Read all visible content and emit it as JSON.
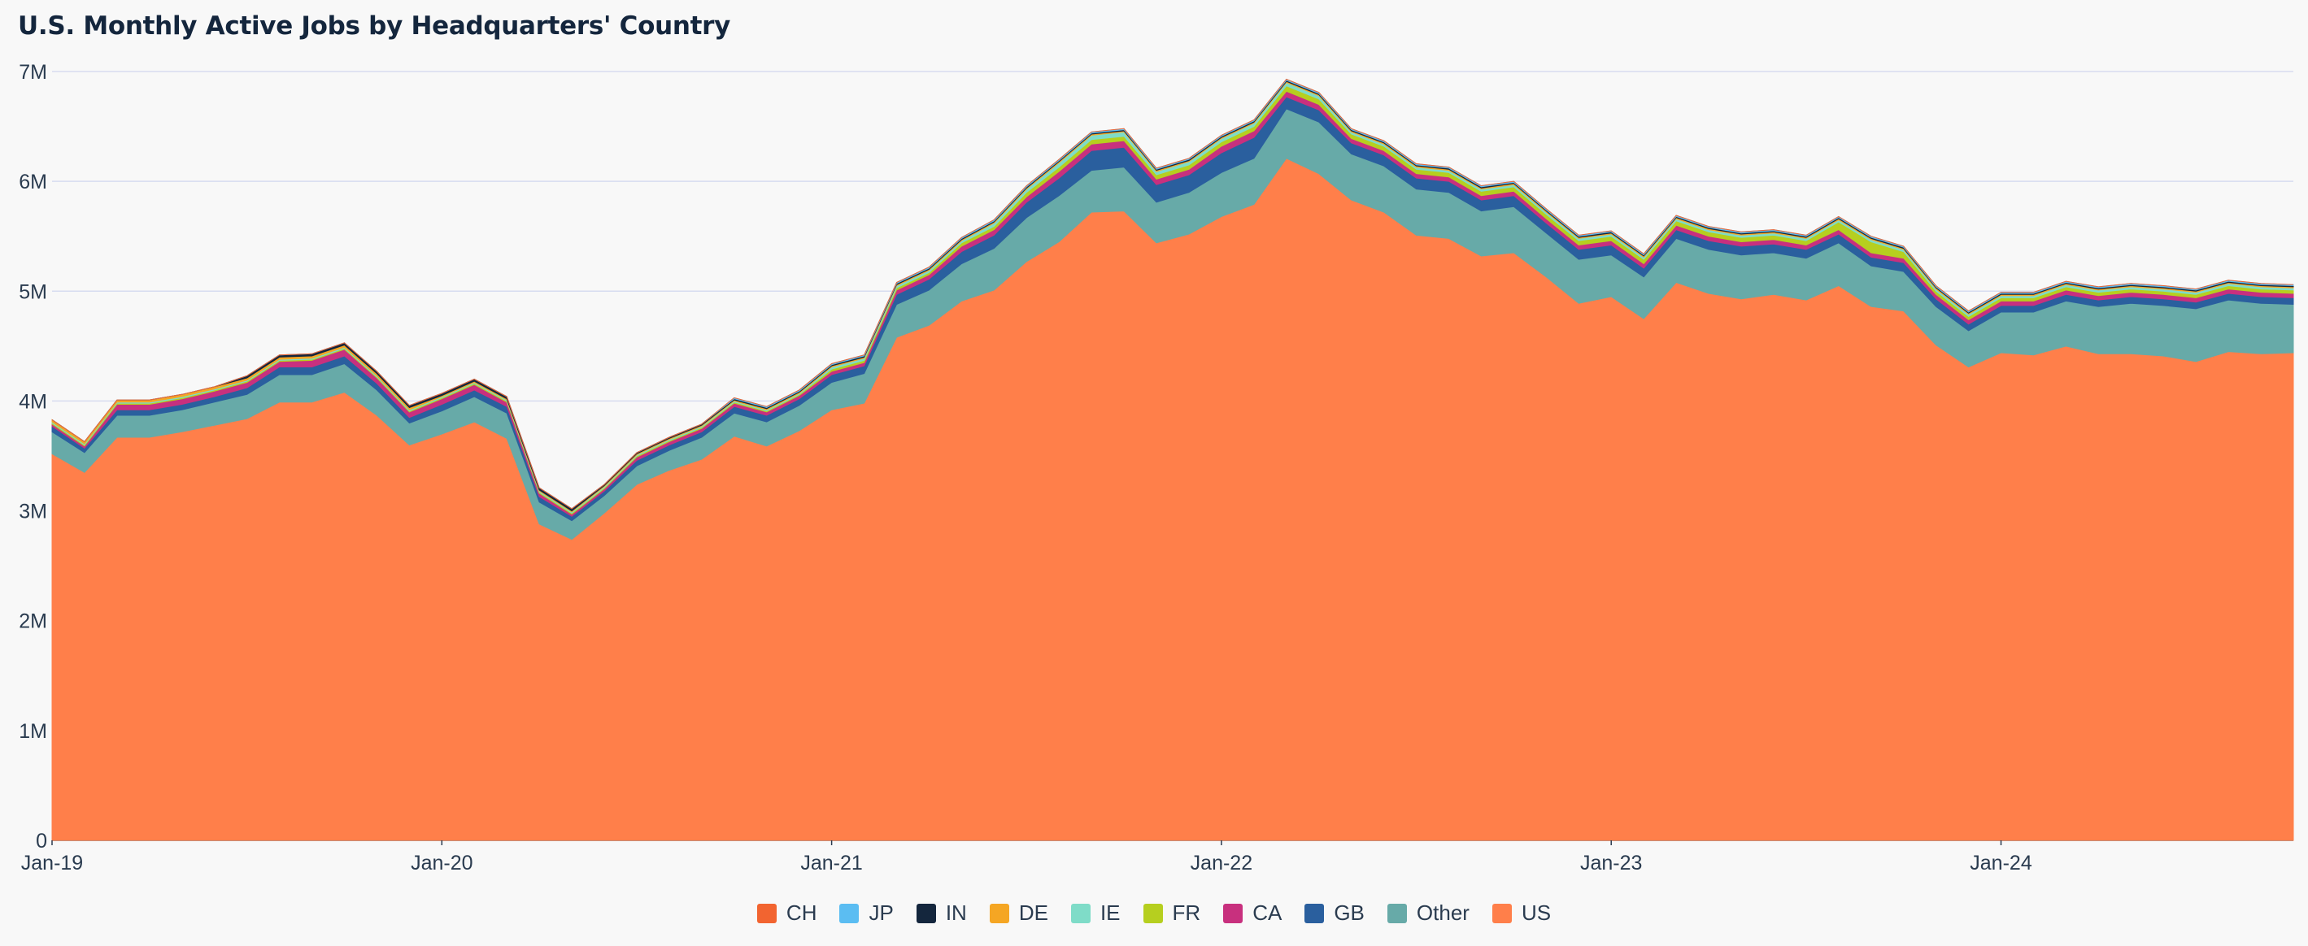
{
  "chart_data": {
    "type": "area",
    "stacked": true,
    "title": "U.S. Monthly Active Jobs by Headquarters' Country",
    "xlabel": "",
    "ylabel": "",
    "ylim": [
      0,
      7000000
    ],
    "y_ticks": [
      {
        "value": 0,
        "label": "0"
      },
      {
        "value": 1000000,
        "label": "1M"
      },
      {
        "value": 2000000,
        "label": "2M"
      },
      {
        "value": 3000000,
        "label": "3M"
      },
      {
        "value": 4000000,
        "label": "4M"
      },
      {
        "value": 5000000,
        "label": "5M"
      },
      {
        "value": 6000000,
        "label": "6M"
      },
      {
        "value": 7000000,
        "label": "7M"
      }
    ],
    "x_ticks": [
      {
        "index": 0,
        "label": "Jan-19"
      },
      {
        "index": 12,
        "label": "Jan-20"
      },
      {
        "index": 24,
        "label": "Jan-21"
      },
      {
        "index": 36,
        "label": "Jan-22"
      },
      {
        "index": 48,
        "label": "Jan-23"
      },
      {
        "index": 60,
        "label": "Jan-24"
      }
    ],
    "categories": [
      "Jan-19",
      "Feb-19",
      "Mar-19",
      "Apr-19",
      "May-19",
      "Jun-19",
      "Jul-19",
      "Aug-19",
      "Sep-19",
      "Oct-19",
      "Nov-19",
      "Dec-19",
      "Jan-20",
      "Feb-20",
      "Mar-20",
      "Apr-20",
      "May-20",
      "Jun-20",
      "Jul-20",
      "Aug-20",
      "Sep-20",
      "Oct-20",
      "Nov-20",
      "Dec-20",
      "Jan-21",
      "Feb-21",
      "Mar-21",
      "Apr-21",
      "May-21",
      "Jun-21",
      "Jul-21",
      "Aug-21",
      "Sep-21",
      "Oct-21",
      "Nov-21",
      "Dec-21",
      "Jan-22",
      "Feb-22",
      "Mar-22",
      "Apr-22",
      "May-22",
      "Jun-22",
      "Jul-22",
      "Aug-22",
      "Sep-22",
      "Oct-22",
      "Nov-22",
      "Dec-22",
      "Jan-23",
      "Feb-23",
      "Mar-23",
      "Apr-23",
      "May-23",
      "Jun-23",
      "Jul-23",
      "Aug-23",
      "Sep-23",
      "Oct-23",
      "Nov-23",
      "Dec-23",
      "Jan-24",
      "Feb-24",
      "Mar-24",
      "Apr-24",
      "May-24",
      "Jun-24",
      "Jul-24",
      "Aug-24",
      "Sep-24",
      "Oct-24"
    ],
    "series": [
      {
        "name": "US",
        "color": "#ff7f4a",
        "values": [
          3520000,
          3350000,
          3670000,
          3670000,
          3720000,
          3780000,
          3840000,
          3990000,
          3990000,
          4080000,
          3870000,
          3600000,
          3700000,
          3810000,
          3660000,
          2880000,
          2740000,
          2980000,
          3240000,
          3370000,
          3470000,
          3680000,
          3590000,
          3730000,
          3920000,
          3980000,
          4580000,
          4690000,
          4910000,
          5010000,
          5270000,
          5450000,
          5720000,
          5730000,
          5440000,
          5520000,
          5680000,
          5790000,
          6210000,
          6070000,
          5830000,
          5720000,
          5510000,
          5480000,
          5320000,
          5350000,
          5130000,
          4890000,
          4950000,
          4750000,
          5080000,
          4980000,
          4930000,
          4970000,
          4920000,
          5050000,
          4860000,
          4820000,
          4510000,
          4310000,
          4440000,
          4420000,
          4500000,
          4430000,
          4430000,
          4410000,
          4360000,
          4450000,
          4430000,
          4440000
        ]
      },
      {
        "name": "Other",
        "color": "#67aaa8",
        "values": [
          200000,
          180000,
          200000,
          200000,
          200000,
          210000,
          220000,
          250000,
          250000,
          260000,
          230000,
          200000,
          210000,
          230000,
          230000,
          200000,
          170000,
          160000,
          170000,
          180000,
          200000,
          210000,
          220000,
          230000,
          250000,
          270000,
          300000,
          320000,
          340000,
          380000,
          400000,
          420000,
          380000,
          400000,
          370000,
          380000,
          400000,
          420000,
          450000,
          470000,
          420000,
          420000,
          420000,
          420000,
          410000,
          420000,
          400000,
          400000,
          380000,
          380000,
          400000,
          400000,
          400000,
          380000,
          380000,
          390000,
          370000,
          360000,
          350000,
          330000,
          370000,
          390000,
          410000,
          430000,
          460000,
          460000,
          480000,
          470000,
          460000,
          440000
        ]
      },
      {
        "name": "GB",
        "color": "#2a5f9e",
        "values": [
          50000,
          40000,
          50000,
          50000,
          50000,
          50000,
          60000,
          70000,
          70000,
          70000,
          60000,
          50000,
          60000,
          60000,
          60000,
          50000,
          40000,
          40000,
          50000,
          50000,
          50000,
          60000,
          60000,
          60000,
          70000,
          70000,
          90000,
          100000,
          110000,
          120000,
          140000,
          160000,
          180000,
          180000,
          160000,
          160000,
          180000,
          190000,
          110000,
          110000,
          100000,
          100000,
          100000,
          100000,
          100000,
          100000,
          90000,
          90000,
          90000,
          80000,
          80000,
          80000,
          80000,
          80000,
          80000,
          80000,
          80000,
          80000,
          70000,
          60000,
          60000,
          60000,
          60000,
          60000,
          60000,
          60000,
          60000,
          60000,
          60000,
          60000
        ]
      },
      {
        "name": "CA",
        "color": "#c8307e",
        "values": [
          20000,
          20000,
          50000,
          50000,
          50000,
          50000,
          50000,
          50000,
          60000,
          60000,
          50000,
          50000,
          50000,
          50000,
          40000,
          30000,
          20000,
          20000,
          30000,
          30000,
          30000,
          30000,
          30000,
          30000,
          30000,
          30000,
          40000,
          40000,
          50000,
          50000,
          50000,
          60000,
          60000,
          60000,
          50000,
          50000,
          60000,
          60000,
          50000,
          50000,
          40000,
          40000,
          40000,
          40000,
          40000,
          40000,
          40000,
          40000,
          40000,
          40000,
          40000,
          40000,
          40000,
          40000,
          40000,
          40000,
          40000,
          40000,
          40000,
          40000,
          40000,
          40000,
          40000,
          40000,
          40000,
          40000,
          40000,
          40000,
          40000,
          40000
        ]
      },
      {
        "name": "FR",
        "color": "#b6cf1f",
        "values": [
          10000,
          10000,
          10000,
          10000,
          10000,
          10000,
          10000,
          10000,
          10000,
          10000,
          10000,
          10000,
          10000,
          10000,
          10000,
          10000,
          10000,
          10000,
          10000,
          10000,
          10000,
          10000,
          10000,
          10000,
          20000,
          20000,
          20000,
          20000,
          30000,
          30000,
          40000,
          40000,
          40000,
          40000,
          40000,
          40000,
          40000,
          40000,
          50000,
          50000,
          40000,
          40000,
          40000,
          40000,
          40000,
          40000,
          40000,
          40000,
          40000,
          40000,
          40000,
          40000,
          40000,
          40000,
          40000,
          70000,
          100000,
          60000,
          30000,
          30000,
          30000,
          30000,
          30000,
          30000,
          30000,
          30000,
          30000,
          30000,
          30000,
          30000
        ]
      },
      {
        "name": "IE",
        "color": "#7fdcc8",
        "values": [
          10000,
          10000,
          10000,
          10000,
          10000,
          10000,
          10000,
          10000,
          10000,
          10000,
          10000,
          10000,
          10000,
          10000,
          10000,
          10000,
          10000,
          10000,
          10000,
          10000,
          10000,
          10000,
          10000,
          10000,
          20000,
          20000,
          20000,
          20000,
          20000,
          30000,
          30000,
          40000,
          40000,
          40000,
          30000,
          30000,
          30000,
          30000,
          30000,
          30000,
          20000,
          20000,
          20000,
          20000,
          20000,
          20000,
          20000,
          20000,
          20000,
          20000,
          20000,
          20000,
          20000,
          20000,
          20000,
          20000,
          20000,
          20000,
          20000,
          20000,
          20000,
          20000,
          20000,
          20000,
          20000,
          20000,
          20000,
          20000,
          20000,
          20000
        ]
      },
      {
        "name": "DE",
        "color": "#f5a623",
        "values": [
          20000,
          20000,
          20000,
          20000,
          20000,
          20000,
          20000,
          20000,
          20000,
          20000,
          20000,
          20000,
          10000,
          10000,
          10000,
          10000,
          10000,
          10000,
          10000,
          10000,
          10000,
          10000,
          10000,
          10000,
          10000,
          10000,
          10000,
          10000,
          10000,
          10000,
          10000,
          10000,
          10000,
          10000,
          10000,
          10000,
          10000,
          10000,
          10000,
          10000,
          10000,
          10000,
          10000,
          10000,
          10000,
          10000,
          10000,
          10000,
          10000,
          10000,
          10000,
          10000,
          10000,
          10000,
          10000,
          10000,
          10000,
          10000,
          10000,
          10000,
          10000,
          10000,
          10000,
          10000,
          10000,
          10000,
          10000,
          10000,
          10000,
          10000
        ]
      },
      {
        "name": "IN",
        "color": "#14263d",
        "values": [
          0,
          0,
          0,
          0,
          0,
          0,
          20000,
          20000,
          20000,
          20000,
          20000,
          20000,
          20000,
          20000,
          20000,
          20000,
          20000,
          10000,
          10000,
          10000,
          10000,
          10000,
          10000,
          10000,
          10000,
          10000,
          10000,
          10000,
          10000,
          10000,
          10000,
          10000,
          10000,
          10000,
          10000,
          10000,
          10000,
          10000,
          10000,
          10000,
          10000,
          10000,
          10000,
          10000,
          10000,
          10000,
          10000,
          10000,
          10000,
          10000,
          10000,
          10000,
          10000,
          10000,
          10000,
          10000,
          10000,
          10000,
          10000,
          10000,
          10000,
          10000,
          10000,
          10000,
          10000,
          10000,
          10000,
          10000,
          10000,
          10000
        ]
      },
      {
        "name": "JP",
        "color": "#5bbdf2",
        "values": [
          0,
          0,
          0,
          0,
          0,
          0,
          0,
          0,
          0,
          0,
          0,
          0,
          0,
          0,
          0,
          0,
          0,
          0,
          0,
          0,
          0,
          10000,
          10000,
          10000,
          10000,
          10000,
          10000,
          10000,
          10000,
          10000,
          10000,
          10000,
          10000,
          10000,
          10000,
          10000,
          10000,
          10000,
          10000,
          10000,
          10000,
          10000,
          10000,
          10000,
          10000,
          10000,
          10000,
          10000,
          10000,
          10000,
          10000,
          10000,
          10000,
          10000,
          10000,
          10000,
          10000,
          10000,
          10000,
          10000,
          10000,
          10000,
          10000,
          10000,
          10000,
          10000,
          10000,
          10000,
          10000,
          10000
        ]
      },
      {
        "name": "CH",
        "color": "#f26430",
        "values": [
          0,
          0,
          0,
          0,
          0,
          0,
          0,
          0,
          0,
          0,
          0,
          0,
          0,
          0,
          0,
          0,
          0,
          0,
          0,
          0,
          0,
          0,
          0,
          0,
          0,
          0,
          0,
          0,
          0,
          0,
          0,
          0,
          0,
          0,
          0,
          0,
          0,
          0,
          0,
          0,
          0,
          0,
          0,
          0,
          0,
          0,
          0,
          0,
          0,
          0,
          0,
          0,
          0,
          0,
          0,
          0,
          0,
          0,
          0,
          0,
          0,
          0,
          0,
          0,
          0,
          0,
          0,
          0,
          0,
          0
        ]
      }
    ],
    "legend_order": [
      "CH",
      "JP",
      "IN",
      "DE",
      "IE",
      "FR",
      "CA",
      "GB",
      "Other",
      "US"
    ],
    "legend_position": "bottom-center",
    "grid": true
  }
}
